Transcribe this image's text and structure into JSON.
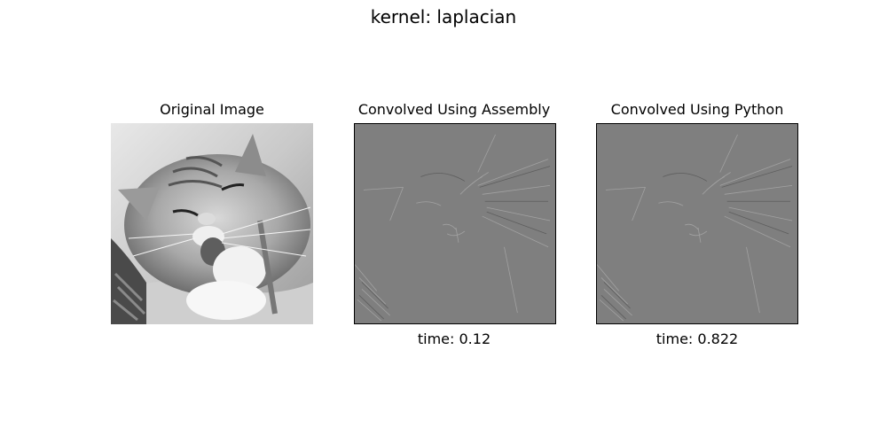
{
  "figure": {
    "suptitle": "kernel: laplacian"
  },
  "panels": [
    {
      "title": "Original Image",
      "xlabel": ""
    },
    {
      "title": "Convolved Using Assembly",
      "xlabel": "time: 0.12"
    },
    {
      "title": "Convolved Using Python",
      "xlabel": "time: 0.822"
    }
  ],
  "colors": {
    "filtered_background": "#7f7f7f",
    "original_light": "#e6e6e6",
    "original_dark": "#3a3a3a"
  }
}
